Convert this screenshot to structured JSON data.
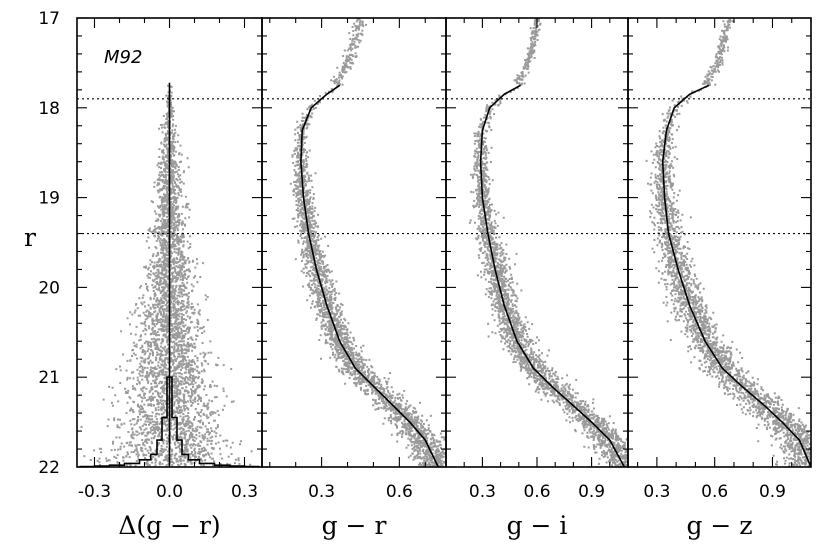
{
  "chart_data": {
    "type": "scatter",
    "cluster_label": "M92",
    "y_axis": {
      "label": "r",
      "lim": [
        17,
        22
      ],
      "ticks": [
        "17",
        "18",
        "19",
        "20",
        "21",
        "22"
      ],
      "inverted": true
    },
    "reference_lines_r": [
      17.9,
      19.4
    ],
    "panels": [
      {
        "id": "delta",
        "xlabel": "Δ(g − r)",
        "xlim": [
          -0.37,
          0.37
        ],
        "xticks": [
          "-0.3",
          "0.0",
          "0.3"
        ],
        "xtick_values": [
          -0.3,
          0.0,
          0.3
        ],
        "fiducial": {
          "x": [
            0,
            0
          ],
          "r": [
            17.72,
            22
          ]
        },
        "spread_r": [
          [
            17.8,
            0.005
          ],
          [
            18.5,
            0.02
          ],
          [
            19.4,
            0.035
          ],
          [
            20.2,
            0.055
          ],
          [
            20.8,
            0.075
          ],
          [
            21.5,
            0.1
          ],
          [
            22.0,
            0.13
          ]
        ],
        "histogram": {
          "bin_centers": [
            -0.33,
            -0.27,
            -0.21,
            -0.15,
            -0.09,
            -0.06,
            -0.04,
            -0.02,
            0.0,
            0.02,
            0.04,
            0.06,
            0.09,
            0.15,
            0.21,
            0.27,
            0.33
          ],
          "counts": [
            0.005,
            0.01,
            0.02,
            0.04,
            0.08,
            0.14,
            0.3,
            0.55,
            1.0,
            0.55,
            0.3,
            0.14,
            0.08,
            0.04,
            0.02,
            0.01,
            0.005
          ]
        }
      },
      {
        "id": "gr",
        "xlabel": "g − r",
        "xlim": [
          0.07,
          0.78
        ],
        "xticks": [
          "0.3",
          "0.6"
        ],
        "xtick_values": [
          0.3,
          0.6
        ],
        "fiducial": {
          "x": [
            0.37,
            0.32,
            0.26,
            0.225,
            0.22,
            0.23,
            0.25,
            0.28,
            0.32,
            0.37,
            0.43,
            0.5,
            0.57,
            0.64,
            0.7,
            0.75
          ],
          "r": [
            17.75,
            17.85,
            18.0,
            18.25,
            18.6,
            19.0,
            19.4,
            19.8,
            20.2,
            20.6,
            20.9,
            21.1,
            21.3,
            21.5,
            21.7,
            22.0
          ]
        },
        "spread": 0.035,
        "rgb": {
          "x": [
            0.36,
            0.4,
            0.43,
            0.45
          ],
          "r": [
            17.7,
            17.5,
            17.25,
            17.0
          ]
        }
      },
      {
        "id": "gi",
        "xlabel": "g − i",
        "xlim": [
          0.1,
          1.1
        ],
        "xticks": [
          "0.3",
          "0.6",
          "0.9"
        ],
        "xtick_values": [
          0.3,
          0.6,
          0.9
        ],
        "fiducial": {
          "x": [
            0.51,
            0.42,
            0.34,
            0.3,
            0.29,
            0.3,
            0.33,
            0.37,
            0.42,
            0.49,
            0.58,
            0.68,
            0.79,
            0.9,
            1.0,
            1.08
          ],
          "r": [
            17.75,
            17.85,
            18.0,
            18.25,
            18.6,
            19.0,
            19.4,
            19.8,
            20.2,
            20.6,
            20.9,
            21.1,
            21.3,
            21.5,
            21.7,
            22.0
          ]
        },
        "spread": 0.05,
        "rgb": {
          "x": [
            0.5,
            0.55,
            0.58,
            0.6
          ],
          "r": [
            17.7,
            17.5,
            17.25,
            17.0
          ]
        }
      },
      {
        "id": "gz",
        "xlabel": "g − z",
        "xlim": [
          0.15,
          1.1
        ],
        "xticks": [
          "0.3",
          "0.6",
          "0.9"
        ],
        "xtick_values": [
          0.3,
          0.6,
          0.9
        ],
        "fiducial": {
          "x": [
            0.57,
            0.47,
            0.39,
            0.35,
            0.33,
            0.34,
            0.36,
            0.41,
            0.47,
            0.55,
            0.64,
            0.74,
            0.85,
            0.95,
            1.04,
            1.1
          ],
          "r": [
            17.75,
            17.85,
            18.0,
            18.25,
            18.6,
            19.0,
            19.4,
            19.8,
            20.2,
            20.6,
            20.9,
            21.1,
            21.3,
            21.5,
            21.7,
            22.0
          ]
        },
        "spread": 0.06,
        "rgb": {
          "x": [
            0.56,
            0.62,
            0.65,
            0.68
          ],
          "r": [
            17.7,
            17.5,
            17.25,
            17.0
          ]
        }
      }
    ],
    "colors": {
      "points": "#9a9a9a",
      "lines": "#000000",
      "background": "#ffffff"
    }
  }
}
